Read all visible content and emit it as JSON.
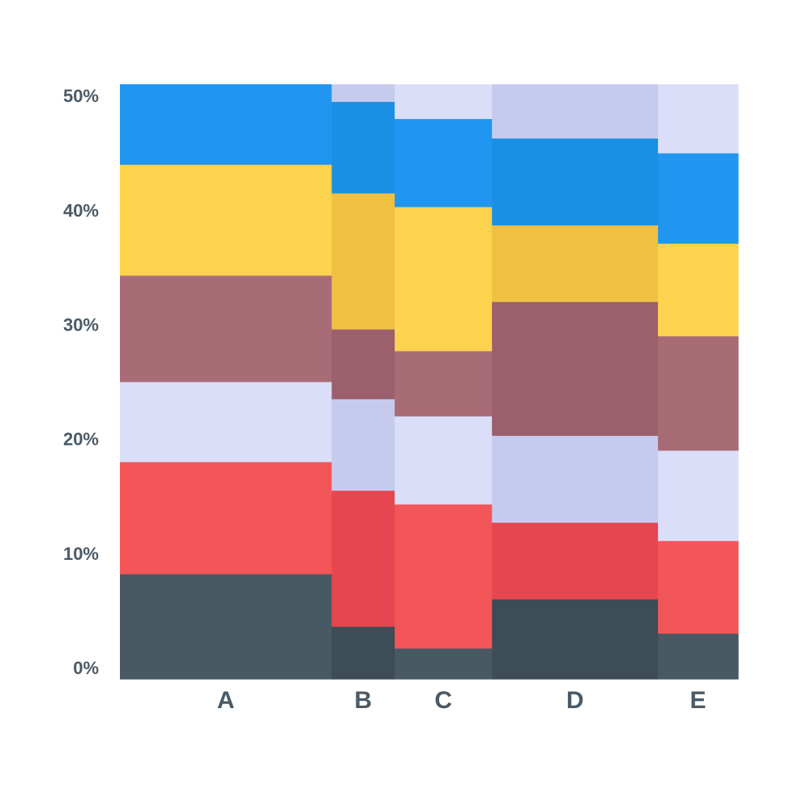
{
  "chart_data": {
    "type": "bar",
    "subtype": "marimekko",
    "title": "",
    "xlabel": "",
    "ylabel": "",
    "ylim": [
      0,
      52
    ],
    "y_ticks": [
      "0%",
      "10%",
      "20%",
      "30%",
      "40%",
      "50%"
    ],
    "y_tick_values": [
      0,
      10,
      20,
      30,
      40,
      50
    ],
    "grid": false,
    "legend": "none",
    "categories": [
      "A",
      "B",
      "C",
      "D",
      "E"
    ],
    "column_widths": [
      37,
      11,
      17,
      29,
      14
    ],
    "segment_colors": [
      "#485964",
      "#f25658",
      "#dadef8",
      "#a86c77",
      "#fdd24f",
      "#2196f0"
    ],
    "columns": [
      {
        "category": "A",
        "boundaries": [
          0,
          9.2,
          19,
          26,
          35.3,
          45,
          52
        ],
        "colors": [
          "#485964",
          "#f25658",
          "#dadef8",
          "#a86c77",
          "#fdd24f",
          "#2196f0"
        ]
      },
      {
        "category": "B",
        "boundaries": [
          0,
          4.6,
          16.5,
          24.5,
          30.6,
          42.5,
          50.5,
          52
        ],
        "colors": [
          "#3c4d56",
          "#e5464f",
          "#c6cbee",
          "#9b5f6d",
          "#f0c042",
          "#1a8fe3",
          "#c6cbee"
        ]
      },
      {
        "category": "C",
        "boundaries": [
          0,
          2.7,
          15.3,
          23,
          28.7,
          41.3,
          49,
          52
        ],
        "colors": [
          "#485964",
          "#f25658",
          "#dadef8",
          "#a86c77",
          "#fdd24f",
          "#2196f0",
          "#dadef8"
        ]
      },
      {
        "category": "D",
        "boundaries": [
          0,
          7,
          13.7,
          21.3,
          33,
          39.7,
          47.3,
          52
        ],
        "colors": [
          "#3c4d56",
          "#e5464f",
          "#c6cbee",
          "#9b5f6d",
          "#f0c042",
          "#1a8fe3",
          "#c6cbee"
        ]
      },
      {
        "category": "E",
        "boundaries": [
          0,
          4,
          12.1,
          20,
          30,
          38.1,
          46,
          52
        ],
        "colors": [
          "#485964",
          "#f25658",
          "#dadef8",
          "#a86c77",
          "#fdd24f",
          "#2196f0",
          "#dadef8"
        ]
      }
    ]
  }
}
